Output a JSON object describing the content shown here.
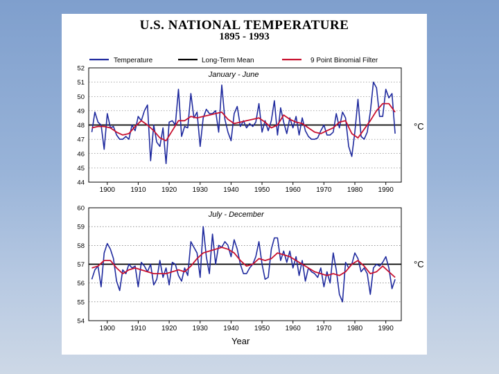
{
  "chart_data": {
    "type": "line",
    "title": "U.S. NATIONAL TEMPERATURE",
    "subtitle": "1895 - 1993",
    "xlabel": "Year",
    "unit": "°C",
    "legend": [
      "Temperature",
      "Long-Term Mean",
      "9 Point Binomial Filter"
    ],
    "legend_colors": [
      "#1f2a9e",
      "#000000",
      "#c8102e"
    ],
    "xticks": [
      "1900",
      "1910",
      "1920",
      "1930",
      "1940",
      "1950",
      "1960",
      "1970",
      "1980",
      "1990"
    ],
    "xtick_values": [
      1900,
      1910,
      1920,
      1930,
      1940,
      1950,
      1960,
      1970,
      1980,
      1990
    ],
    "xlim": [
      1894,
      1995
    ],
    "panels": [
      {
        "label": "January - June",
        "ylim": [
          44,
          52
        ],
        "yticks": [
          "52",
          "51",
          "50",
          "49",
          "48",
          "47",
          "46",
          "45",
          "44"
        ],
        "ytick_values": [
          52,
          51,
          50,
          49,
          48,
          47,
          46,
          45,
          44
        ],
        "mean": 48.0,
        "temperature": [
          [
            1895,
            47.5
          ],
          [
            1896,
            48.9
          ],
          [
            1897,
            48.2
          ],
          [
            1898,
            48.0
          ],
          [
            1899,
            46.3
          ],
          [
            1900,
            48.8
          ],
          [
            1901,
            47.8
          ],
          [
            1902,
            47.9
          ],
          [
            1903,
            47.3
          ],
          [
            1904,
            47.0
          ],
          [
            1905,
            47.0
          ],
          [
            1906,
            47.2
          ],
          [
            1907,
            47.0
          ],
          [
            1908,
            48.0
          ],
          [
            1909,
            47.6
          ],
          [
            1910,
            48.6
          ],
          [
            1911,
            48.3
          ],
          [
            1912,
            49.0
          ],
          [
            1913,
            49.4
          ],
          [
            1914,
            45.5
          ],
          [
            1915,
            48.0
          ],
          [
            1916,
            46.8
          ],
          [
            1917,
            46.5
          ],
          [
            1918,
            47.8
          ],
          [
            1919,
            45.3
          ],
          [
            1920,
            48.2
          ],
          [
            1921,
            48.3
          ],
          [
            1922,
            48.0
          ],
          [
            1923,
            50.5
          ],
          [
            1924,
            47.2
          ],
          [
            1925,
            47.9
          ],
          [
            1926,
            47.8
          ],
          [
            1927,
            50.2
          ],
          [
            1928,
            48.5
          ],
          [
            1929,
            48.9
          ],
          [
            1930,
            46.5
          ],
          [
            1931,
            48.5
          ],
          [
            1932,
            49.1
          ],
          [
            1933,
            48.8
          ],
          [
            1934,
            48.8
          ],
          [
            1935,
            49.0
          ],
          [
            1936,
            47.5
          ],
          [
            1937,
            50.8
          ],
          [
            1938,
            48.4
          ],
          [
            1939,
            47.5
          ],
          [
            1940,
            46.9
          ],
          [
            1941,
            48.8
          ],
          [
            1942,
            49.3
          ],
          [
            1943,
            47.9
          ],
          [
            1944,
            48.3
          ],
          [
            1945,
            47.8
          ],
          [
            1946,
            48.1
          ],
          [
            1947,
            47.9
          ],
          [
            1948,
            48.2
          ],
          [
            1949,
            49.5
          ],
          [
            1950,
            47.5
          ],
          [
            1951,
            48.3
          ],
          [
            1952,
            47.6
          ],
          [
            1953,
            48.3
          ],
          [
            1954,
            49.7
          ],
          [
            1955,
            47.3
          ],
          [
            1956,
            49.2
          ],
          [
            1957,
            48.2
          ],
          [
            1958,
            47.4
          ],
          [
            1959,
            48.5
          ],
          [
            1960,
            47.8
          ],
          [
            1961,
            48.6
          ],
          [
            1962,
            47.3
          ],
          [
            1963,
            48.5
          ],
          [
            1964,
            47.6
          ],
          [
            1965,
            47.2
          ],
          [
            1966,
            47.0
          ],
          [
            1967,
            47.0
          ],
          [
            1968,
            47.1
          ],
          [
            1969,
            47.6
          ],
          [
            1970,
            48.0
          ],
          [
            1971,
            47.3
          ],
          [
            1972,
            47.3
          ],
          [
            1973,
            47.5
          ],
          [
            1974,
            48.8
          ],
          [
            1975,
            47.8
          ],
          [
            1976,
            48.9
          ],
          [
            1977,
            48.5
          ],
          [
            1978,
            46.5
          ],
          [
            1979,
            45.8
          ],
          [
            1980,
            47.5
          ],
          [
            1981,
            49.8
          ],
          [
            1982,
            47.2
          ],
          [
            1983,
            47.0
          ],
          [
            1984,
            47.5
          ],
          [
            1985,
            48.9
          ],
          [
            1986,
            51.0
          ],
          [
            1987,
            50.6
          ],
          [
            1988,
            48.6
          ],
          [
            1989,
            48.6
          ],
          [
            1990,
            50.5
          ],
          [
            1991,
            49.9
          ],
          [
            1992,
            50.2
          ],
          [
            1993,
            47.4
          ]
        ],
        "filter": [
          [
            1895,
            47.8
          ],
          [
            1897,
            47.9
          ],
          [
            1899,
            47.9
          ],
          [
            1901,
            47.8
          ],
          [
            1903,
            47.5
          ],
          [
            1905,
            47.3
          ],
          [
            1907,
            47.4
          ],
          [
            1909,
            47.9
          ],
          [
            1911,
            48.3
          ],
          [
            1913,
            48.0
          ],
          [
            1915,
            47.6
          ],
          [
            1917,
            47.1
          ],
          [
            1919,
            46.9
          ],
          [
            1921,
            47.6
          ],
          [
            1923,
            48.3
          ],
          [
            1925,
            48.3
          ],
          [
            1927,
            48.6
          ],
          [
            1929,
            48.5
          ],
          [
            1931,
            48.6
          ],
          [
            1933,
            48.7
          ],
          [
            1935,
            48.8
          ],
          [
            1937,
            48.9
          ],
          [
            1939,
            48.4
          ],
          [
            1941,
            48.1
          ],
          [
            1943,
            48.2
          ],
          [
            1945,
            48.3
          ],
          [
            1947,
            48.4
          ],
          [
            1949,
            48.5
          ],
          [
            1951,
            48.2
          ],
          [
            1953,
            47.8
          ],
          [
            1955,
            48.0
          ],
          [
            1957,
            48.7
          ],
          [
            1959,
            48.4
          ],
          [
            1961,
            48.2
          ],
          [
            1963,
            48.1
          ],
          [
            1965,
            47.8
          ],
          [
            1967,
            47.5
          ],
          [
            1969,
            47.4
          ],
          [
            1971,
            47.6
          ],
          [
            1973,
            47.8
          ],
          [
            1975,
            48.2
          ],
          [
            1977,
            48.3
          ],
          [
            1979,
            47.4
          ],
          [
            1981,
            47.1
          ],
          [
            1983,
            47.7
          ],
          [
            1985,
            48.3
          ],
          [
            1987,
            49.0
          ],
          [
            1989,
            49.5
          ],
          [
            1991,
            49.5
          ],
          [
            1993,
            48.9
          ]
        ]
      },
      {
        "label": "July - December",
        "ylim": [
          54,
          60
        ],
        "yticks": [
          "60",
          "59",
          "58",
          "57",
          "56",
          "55",
          "54"
        ],
        "ytick_values": [
          60,
          59,
          58,
          57,
          56,
          55,
          54
        ],
        "mean": 57.0,
        "temperature": [
          [
            1895,
            56.2
          ],
          [
            1896,
            56.7
          ],
          [
            1897,
            56.9
          ],
          [
            1898,
            55.8
          ],
          [
            1899,
            57.6
          ],
          [
            1900,
            58.1
          ],
          [
            1901,
            57.8
          ],
          [
            1902,
            57.3
          ],
          [
            1903,
            56.1
          ],
          [
            1904,
            55.6
          ],
          [
            1905,
            56.7
          ],
          [
            1906,
            56.5
          ],
          [
            1907,
            57.0
          ],
          [
            1908,
            56.8
          ],
          [
            1909,
            56.9
          ],
          [
            1910,
            55.8
          ],
          [
            1911,
            57.1
          ],
          [
            1912,
            56.9
          ],
          [
            1913,
            56.6
          ],
          [
            1914,
            57.0
          ],
          [
            1915,
            55.9
          ],
          [
            1916,
            56.2
          ],
          [
            1917,
            57.2
          ],
          [
            1918,
            56.3
          ],
          [
            1919,
            56.8
          ],
          [
            1920,
            55.9
          ],
          [
            1921,
            57.1
          ],
          [
            1922,
            57.0
          ],
          [
            1923,
            56.4
          ],
          [
            1924,
            56.1
          ],
          [
            1925,
            56.8
          ],
          [
            1926,
            56.4
          ],
          [
            1927,
            58.2
          ],
          [
            1928,
            57.9
          ],
          [
            1929,
            57.6
          ],
          [
            1930,
            56.3
          ],
          [
            1931,
            59.0
          ],
          [
            1932,
            57.4
          ],
          [
            1933,
            56.5
          ],
          [
            1934,
            58.6
          ],
          [
            1935,
            57.0
          ],
          [
            1936,
            58.0
          ],
          [
            1937,
            57.9
          ],
          [
            1938,
            58.2
          ],
          [
            1939,
            58.0
          ],
          [
            1940,
            57.4
          ],
          [
            1941,
            58.3
          ],
          [
            1942,
            57.8
          ],
          [
            1943,
            57.0
          ],
          [
            1944,
            56.5
          ],
          [
            1945,
            56.5
          ],
          [
            1946,
            56.8
          ],
          [
            1947,
            57.0
          ],
          [
            1948,
            57.4
          ],
          [
            1949,
            58.2
          ],
          [
            1950,
            57.0
          ],
          [
            1951,
            56.2
          ],
          [
            1952,
            56.3
          ],
          [
            1953,
            57.8
          ],
          [
            1954,
            58.4
          ],
          [
            1955,
            58.4
          ],
          [
            1956,
            57.2
          ],
          [
            1957,
            57.7
          ],
          [
            1958,
            57.1
          ],
          [
            1959,
            57.7
          ],
          [
            1960,
            56.8
          ],
          [
            1961,
            57.4
          ],
          [
            1962,
            56.4
          ],
          [
            1963,
            57.2
          ],
          [
            1964,
            56.1
          ],
          [
            1965,
            56.8
          ],
          [
            1966,
            56.6
          ],
          [
            1967,
            56.5
          ],
          [
            1968,
            56.3
          ],
          [
            1969,
            56.8
          ],
          [
            1970,
            55.8
          ],
          [
            1971,
            56.6
          ],
          [
            1972,
            56.0
          ],
          [
            1973,
            57.6
          ],
          [
            1974,
            56.7
          ],
          [
            1975,
            55.4
          ],
          [
            1976,
            55.0
          ],
          [
            1977,
            57.1
          ],
          [
            1978,
            56.8
          ],
          [
            1979,
            57.0
          ],
          [
            1980,
            57.6
          ],
          [
            1981,
            57.3
          ],
          [
            1982,
            56.6
          ],
          [
            1983,
            56.8
          ],
          [
            1984,
            56.5
          ],
          [
            1985,
            55.4
          ],
          [
            1986,
            56.8
          ],
          [
            1987,
            57.0
          ],
          [
            1988,
            56.9
          ],
          [
            1989,
            57.1
          ],
          [
            1990,
            57.4
          ],
          [
            1991,
            56.8
          ],
          [
            1992,
            55.7
          ],
          [
            1993,
            56.2
          ]
        ],
        "filter": [
          [
            1895,
            56.8
          ],
          [
            1897,
            56.9
          ],
          [
            1899,
            57.2
          ],
          [
            1901,
            57.2
          ],
          [
            1903,
            56.8
          ],
          [
            1905,
            56.5
          ],
          [
            1907,
            56.7
          ],
          [
            1909,
            56.8
          ],
          [
            1911,
            56.7
          ],
          [
            1913,
            56.6
          ],
          [
            1915,
            56.5
          ],
          [
            1917,
            56.5
          ],
          [
            1919,
            56.5
          ],
          [
            1921,
            56.6
          ],
          [
            1923,
            56.7
          ],
          [
            1925,
            56.6
          ],
          [
            1927,
            56.9
          ],
          [
            1929,
            57.3
          ],
          [
            1931,
            57.6
          ],
          [
            1933,
            57.7
          ],
          [
            1935,
            57.8
          ],
          [
            1937,
            57.9
          ],
          [
            1939,
            57.8
          ],
          [
            1941,
            57.6
          ],
          [
            1943,
            57.2
          ],
          [
            1945,
            56.9
          ],
          [
            1947,
            57.0
          ],
          [
            1949,
            57.3
          ],
          [
            1951,
            57.2
          ],
          [
            1953,
            57.3
          ],
          [
            1955,
            57.6
          ],
          [
            1957,
            57.5
          ],
          [
            1959,
            57.4
          ],
          [
            1961,
            57.2
          ],
          [
            1963,
            57.0
          ],
          [
            1965,
            56.8
          ],
          [
            1967,
            56.6
          ],
          [
            1969,
            56.5
          ],
          [
            1971,
            56.4
          ],
          [
            1973,
            56.5
          ],
          [
            1975,
            56.4
          ],
          [
            1977,
            56.6
          ],
          [
            1979,
            57.0
          ],
          [
            1981,
            57.2
          ],
          [
            1983,
            56.9
          ],
          [
            1985,
            56.5
          ],
          [
            1987,
            56.6
          ],
          [
            1989,
            56.9
          ],
          [
            1991,
            56.6
          ],
          [
            1993,
            56.3
          ]
        ]
      }
    ]
  }
}
